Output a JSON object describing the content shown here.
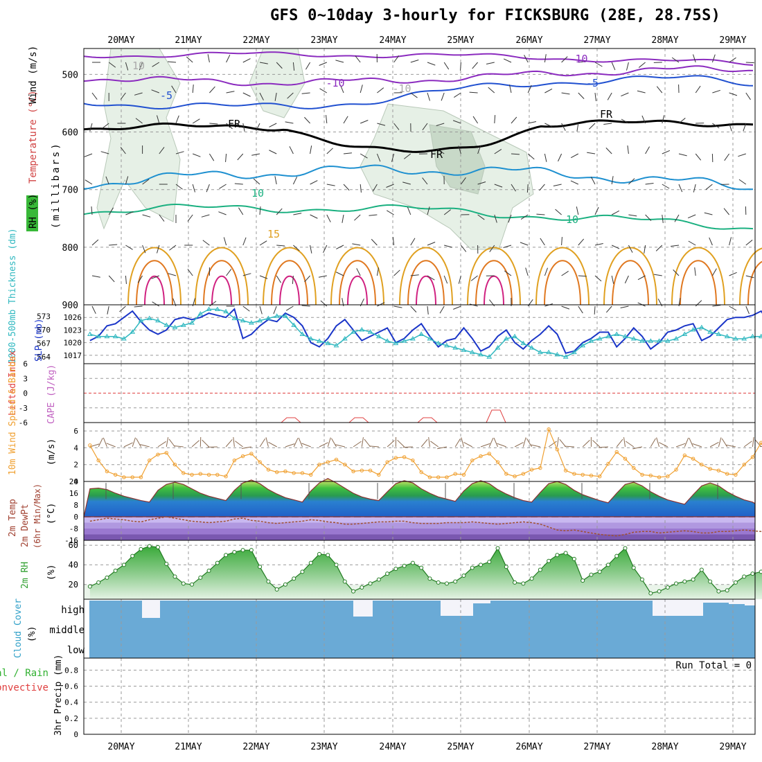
{
  "title": "GFS 0~10day 3-hourly for FICKSBURG (28E, 28.75S)",
  "dates": [
    "20MAY",
    "21MAY",
    "22MAY",
    "23MAY",
    "24MAY",
    "25MAY",
    "26MAY",
    "27MAY",
    "28MAY",
    "29MAY"
  ],
  "panels": {
    "upper": {
      "ylabel_rh": "RH (%)",
      "ylabel_temp": "Temperature (°C)",
      "ylabel_wind": "Wind (m/s)",
      "ylabel_mb": "(millibars)",
      "yticks": [
        500,
        600,
        700,
        800,
        900
      ],
      "contour_labels": [
        "-10",
        "-10",
        "-5",
        "-5",
        "-10",
        "FR",
        "FR",
        "FR",
        "10",
        "10",
        "15",
        "10"
      ]
    },
    "thickness": {
      "ylabel_thk": "1000-500mb Thickness (dm)",
      "ylabel_slp": "SLP (mb)",
      "thk_ticks": [
        573,
        570,
        567,
        564
      ],
      "slp_ticks": [
        1026,
        1023,
        1020,
        1017
      ]
    },
    "stability": {
      "ylabel_li": "Lifted Index",
      "ylabel_cape": "CAPE (J/kg)",
      "li_ticks": [
        "6",
        "3",
        "0",
        "-3",
        "-6"
      ]
    },
    "wind10m": {
      "ylabel": "10m Wind Speed & Barbs",
      "ylabel_line2": "Speed",
      "ylabel_line3": "& Barbs",
      "unit": "(m/s)",
      "yticks": [
        6,
        4,
        2,
        0
      ]
    },
    "temp2m": {
      "ylabel1": "2m Temp",
      "ylabel2": "2m DewPt",
      "ylabel3": "(6hr Min/Max)",
      "unit": "(°C)",
      "yticks": [
        24,
        16,
        8,
        0,
        -8,
        -16
      ]
    },
    "rh2m": {
      "ylabel": "2m RH",
      "unit": "(%)",
      "yticks": [
        60,
        40,
        20
      ]
    },
    "cloud": {
      "ylabel": "Cloud Cover",
      "unit": "(%)",
      "levels": [
        "high",
        "middle",
        "low"
      ]
    },
    "precip": {
      "ylabel1": "Total / Rain",
      "ylabel2": "Convective",
      "ylabel3": "3hr Precip (mm)",
      "yticks": [
        "0.8",
        "0.6",
        "0.4",
        "0.2",
        "0"
      ],
      "run_total": "Run Total = 0"
    }
  },
  "chart_data": [
    {
      "type": "line",
      "name": "slp",
      "ylim": [
        1015,
        1029
      ],
      "values": [
        1020.5,
        1021.5,
        1024,
        1024.5,
        1026,
        1027.5,
        1025,
        1023,
        1022,
        1023,
        1025.5,
        1026,
        1025.5,
        1026,
        1027,
        1026.5,
        1026,
        1028,
        1021,
        1022,
        1024,
        1025.5,
        1025,
        1027,
        1026,
        1024,
        1020,
        1019,
        1021,
        1024,
        1025.5,
        1023,
        1020.5,
        1021.5,
        1022.5,
        1023.5,
        1020,
        1021,
        1023,
        1024.5,
        1021.5,
        1019,
        1020.5,
        1021,
        1023.5,
        1021,
        1018,
        1019,
        1021.5,
        1023,
        1020,
        1018.5,
        1020.5,
        1022,
        1024,
        1022,
        1017.5,
        1018,
        1020,
        1021,
        1022.5,
        1022.5,
        1019,
        1021,
        1023.5,
        1021.5,
        1018.5,
        1020,
        1022.5,
        1023,
        1024,
        1024.5,
        1020.5,
        1021.5,
        1023.5,
        1025.5,
        1026,
        1026,
        1026.5,
        1027.5,
        1024.5,
        1022,
        1019.5,
        1020.5,
        1021.5,
        1022,
        1022,
        1023
      ]
    },
    {
      "type": "line",
      "name": "thickness",
      "ylim": [
        562.5,
        575.5
      ],
      "values": [
        569,
        568.5,
        568.5,
        568.5,
        568,
        569.5,
        572,
        572.5,
        572,
        571,
        570.5,
        571,
        571.5,
        573.5,
        574.5,
        574.5,
        574,
        572.5,
        572,
        571.5,
        572,
        572.5,
        573,
        573,
        571,
        569,
        568,
        567.5,
        567,
        566.5,
        568,
        569.5,
        570,
        569.5,
        568.5,
        567.5,
        567,
        567.5,
        568,
        569,
        568,
        567,
        566.5,
        566,
        565.5,
        565,
        564.5,
        564,
        566,
        568,
        568.5,
        567,
        566,
        565,
        565,
        564.5,
        564,
        565,
        566.5,
        567.5,
        568,
        568.5,
        569,
        568.5,
        568,
        567.5,
        567.5,
        567.5,
        567.5,
        568,
        569,
        570,
        570.5,
        569.5,
        569,
        568.5,
        568,
        568,
        568.5,
        568.5,
        569,
        568.5,
        568,
        568,
        567.5,
        566.5,
        565.5,
        565
      ]
    },
    {
      "type": "line",
      "name": "wind_speed_10m",
      "ylim": [
        0,
        7
      ],
      "values": [
        4.3,
        2.5,
        1.2,
        0.8,
        0.5,
        0.5,
        0.5,
        2.5,
        3.2,
        3.4,
        2.0,
        1.0,
        0.8,
        0.9,
        0.8,
        0.8,
        0.6,
        2.5,
        3.0,
        3.3,
        2.3,
        1.4,
        1.1,
        1.2,
        1.0,
        1.0,
        0.8,
        2.0,
        2.3,
        2.6,
        2.0,
        1.2,
        1.3,
        1.3,
        0.8,
        2.3,
        2.8,
        2.9,
        2.5,
        1.1,
        0.5,
        0.5,
        0.5,
        0.9,
        0.8,
        2.5,
        3.0,
        3.3,
        2.3,
        0.9,
        0.6,
        0.9,
        1.4,
        1.6,
        6.2,
        3.8,
        1.3,
        0.9,
        0.8,
        0.7,
        0.6,
        2.1,
        3.5,
        2.7,
        1.6,
        0.8,
        0.7,
        0.5,
        0.6,
        1.4,
        3.1,
        2.7,
        2.0,
        1.5,
        1.3,
        0.9,
        0.8,
        2.0,
        2.9,
        4.6,
        2.5,
        1.8,
        0.6,
        0.5,
        0.5,
        0.3,
        0.5,
        1.0
      ]
    },
    {
      "type": "area",
      "name": "temp_2m",
      "ylim": [
        -16,
        24
      ],
      "values": [
        19,
        19.5,
        18.5,
        16,
        14,
        12.5,
        11,
        10,
        18,
        22,
        23.5,
        22,
        19,
        16,
        14,
        12.5,
        11,
        18,
        23,
        25,
        22.5,
        18.5,
        15.5,
        13,
        11.5,
        10,
        17.5,
        23,
        26,
        23,
        19.5,
        16,
        13.5,
        12,
        11,
        17,
        22.5,
        24.5,
        23,
        19,
        16,
        13.5,
        12,
        10.5,
        17.5,
        22.5,
        24.5,
        22.5,
        18.5,
        15.5,
        13,
        11,
        10,
        16.5,
        22.5,
        24,
        22,
        18,
        15,
        13,
        11,
        9.5,
        16,
        22,
        23.5,
        21,
        17,
        14,
        11.5,
        10,
        8.5,
        15,
        21,
        23,
        21,
        17,
        14,
        11.5,
        10,
        9,
        15,
        21,
        23,
        21,
        17,
        13.5,
        11.5,
        10
      ]
    },
    {
      "type": "line",
      "name": "dewpoint_2m",
      "ylim": [
        -16,
        24
      ],
      "values": [
        -3,
        -2,
        -1,
        -1.5,
        -2,
        -3,
        -3.5,
        -2,
        -1,
        0,
        -1,
        -2,
        -3,
        -3.5,
        -4,
        -3.5,
        -3,
        -1.5,
        -1,
        -2.5,
        -3,
        -4,
        -4.5,
        -4,
        -3.5,
        -3,
        -2,
        -2.5,
        -3.5,
        -4,
        -5,
        -5,
        -4.5,
        -4,
        -3.5,
        -3.5,
        -3,
        -3,
        -4,
        -4.5,
        -4.5,
        -4.5,
        -4,
        -4,
        -4,
        -3.5,
        -4,
        -4.5,
        -5,
        -4.5,
        -4,
        -3.5,
        -4,
        -5,
        -7,
        -9,
        -9.5,
        -9,
        -10,
        -11,
        -12,
        -12.5,
        -13,
        -12,
        -10.5,
        -10,
        -10,
        -11,
        -10.5,
        -10,
        -9.5,
        -10,
        -11,
        -11,
        -10,
        -10,
        -9.5,
        -9,
        -9.5,
        -10,
        -9.5,
        -9.5,
        -10.5,
        -11,
        -11,
        -10.5,
        -9,
        -8.5
      ]
    },
    {
      "type": "area",
      "name": "rh_2m",
      "ylim": [
        5,
        65
      ],
      "values": [
        18,
        22,
        27,
        34,
        40,
        49,
        56,
        59,
        58,
        41,
        28,
        21,
        20,
        27,
        34,
        42,
        50,
        53,
        55,
        55,
        38,
        23,
        15,
        20,
        26,
        33,
        42,
        51,
        50,
        40,
        23,
        13,
        17,
        21,
        25,
        31,
        36,
        39,
        42,
        37,
        26,
        22,
        21,
        23,
        29,
        37,
        40,
        43,
        57,
        38,
        22,
        21,
        26,
        35,
        44,
        50,
        52,
        46,
        24,
        30,
        33,
        40,
        49,
        57,
        37,
        25,
        11,
        13,
        17,
        21,
        23,
        25,
        35,
        23,
        13,
        14,
        22,
        28,
        31,
        33,
        35,
        33,
        25,
        17,
        11,
        16,
        20,
        22
      ]
    }
  ]
}
